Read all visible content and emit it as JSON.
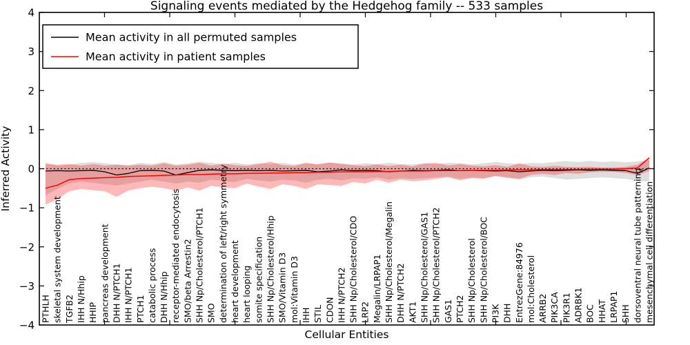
{
  "figure": {
    "title": "Signaling events mediated by the Hedgehog family -- 533 samples",
    "xlabel": "Cellular Entities",
    "ylabel": "Inferred Activity"
  },
  "legend": {
    "position": "upper left",
    "entries": [
      {
        "label": "Mean activity in all permuted samples",
        "color": "#000000"
      },
      {
        "label": "Mean activity in patient samples",
        "color": "#ff0000"
      }
    ]
  },
  "chart_data": {
    "type": "line",
    "title": "Signaling events mediated by the Hedgehog family -- 533 samples",
    "xlabel": "Cellular Entities",
    "ylabel": "Inferred Activity",
    "ylim": [
      -4,
      4
    ],
    "yticks": [
      -4,
      -3,
      -2,
      -1,
      0,
      1,
      2,
      3,
      4
    ],
    "grid": false,
    "zero_reference_line": true,
    "legend_position": "upper left",
    "categories": [
      "PTHLH",
      "skeletal system development",
      "TGFB2",
      "IHH N/Hhip",
      "HHIP",
      "pancreas development",
      "DHH N/PTCH1",
      "IHH N/PTCH1",
      "PTCH1",
      "catabolic process",
      "DHH N/Hhip",
      "receptor-mediated endocytosis",
      "SMO/beta Arrestin2",
      "SHH Np/Cholesterol/PTCH1",
      "SMO",
      "determination of left/right symmetry",
      "heart development",
      "heart looping",
      "somite specification",
      "SHH Np/Cholesterol/Hhip",
      "SMO/Vitamin D3",
      "mol:Vitamin D3",
      "IHH",
      "STIL",
      "CDON",
      "IHH N/PTCH2",
      "SHH Np/Cholesterol/CDO",
      "LRP2",
      "Megalin/LRPAP1",
      "SHH Np/Cholesterol/Megalin",
      "DHH N/PTCH2",
      "AKT1",
      "SHH Np/Cholesterol/GAS1",
      "SHH Np/Cholesterol/PTCH2",
      "GAS1",
      "PTCH2",
      "SHH Np/Cholesterol",
      "SHH Np/Cholesterol/BOC",
      "PI3K",
      "DHH",
      "EntrezGene:84976",
      "mol:Cholesterol",
      "ARRB2",
      "PIK3CA",
      "PIK3R1",
      "ADRBK1",
      "BOC",
      "HHAT",
      "LRPAP1",
      "SHH",
      "dorsoventral neural tube patterning",
      "mesenchymal cell differentiation"
    ],
    "series": [
      {
        "name": "Mean activity in all permuted samples",
        "color": "#000000",
        "style": "solid",
        "values": [
          -0.06,
          -0.05,
          -0.06,
          -0.05,
          -0.04,
          -0.08,
          -0.16,
          -0.12,
          -0.05,
          -0.04,
          -0.06,
          -0.16,
          -0.1,
          -0.04,
          -0.03,
          -0.04,
          -0.05,
          -0.04,
          -0.05,
          -0.04,
          -0.06,
          -0.05,
          -0.04,
          -0.08,
          -0.06,
          -0.03,
          -0.05,
          -0.04,
          -0.05,
          -0.08,
          -0.06,
          -0.04,
          -0.05,
          -0.04,
          -0.03,
          -0.05,
          -0.04,
          -0.05,
          -0.06,
          -0.05,
          -0.08,
          -0.06,
          -0.04,
          -0.05,
          -0.04,
          -0.03,
          -0.04,
          -0.03,
          -0.04,
          -0.05,
          -0.12,
          0.02
        ]
      },
      {
        "name": "Mean activity in patient samples",
        "color": "#ff0000",
        "style": "solid",
        "values": [
          -0.5,
          -0.42,
          -0.28,
          -0.25,
          -0.24,
          -0.23,
          -0.22,
          -0.2,
          -0.19,
          -0.18,
          -0.17,
          -0.16,
          -0.15,
          -0.15,
          -0.14,
          -0.13,
          -0.13,
          -0.12,
          -0.12,
          -0.11,
          -0.11,
          -0.1,
          -0.1,
          -0.09,
          -0.09,
          -0.08,
          -0.08,
          -0.08,
          -0.07,
          -0.07,
          -0.06,
          -0.06,
          -0.06,
          -0.05,
          -0.05,
          -0.05,
          -0.04,
          -0.04,
          -0.04,
          -0.03,
          -0.03,
          -0.03,
          -0.02,
          -0.02,
          -0.02,
          -0.02,
          -0.01,
          -0.01,
          -0.01,
          0.0,
          0.02,
          0.28
        ]
      }
    ],
    "bands": [
      {
        "name": "permuted samples activity range",
        "color": "rgba(0,0,0,0.13)",
        "upper": [
          0.16,
          0.08,
          0.1,
          0.15,
          0.17,
          0.14,
          0.11,
          0.09,
          0.15,
          0.12,
          0.17,
          0.11,
          0.14,
          0.18,
          0.15,
          0.12,
          0.15,
          0.11,
          0.14,
          0.12,
          0.15,
          0.11,
          0.14,
          0.12,
          0.15,
          0.14,
          0.11,
          0.14,
          0.12,
          0.15,
          0.12,
          0.11,
          0.14,
          0.12,
          0.15,
          0.14,
          0.11,
          0.14,
          0.17,
          0.14,
          0.12,
          0.15,
          0.14,
          0.17,
          0.2,
          0.17,
          0.2,
          0.17,
          0.19,
          0.16,
          0.19,
          0.22
        ],
        "lower": [
          -0.68,
          -0.52,
          -0.38,
          -0.33,
          -0.36,
          -0.4,
          -0.43,
          -0.38,
          -0.33,
          -0.28,
          -0.33,
          -0.38,
          -0.33,
          -0.36,
          -0.28,
          -0.32,
          -0.34,
          -0.26,
          -0.3,
          -0.33,
          -0.28,
          -0.3,
          -0.36,
          -0.28,
          -0.26,
          -0.3,
          -0.24,
          -0.26,
          -0.22,
          -0.28,
          -0.24,
          -0.26,
          -0.24,
          -0.22,
          -0.2,
          -0.26,
          -0.22,
          -0.24,
          -0.2,
          -0.24,
          -0.28,
          -0.22,
          -0.2,
          -0.24,
          -0.28,
          -0.26,
          -0.24,
          -0.22,
          -0.24,
          -0.26,
          -0.31,
          -0.33
        ]
      },
      {
        "name": "patient samples activity range",
        "color": "rgba(255,0,0,0.28)",
        "upper": [
          0.12,
          0.1,
          0.12,
          0.08,
          0.12,
          0.08,
          0.1,
          0.08,
          0.1,
          0.08,
          0.14,
          0.08,
          0.1,
          0.15,
          0.08,
          0.13,
          0.09,
          0.07,
          0.12,
          0.18,
          0.09,
          0.07,
          0.15,
          0.11,
          0.16,
          0.12,
          0.09,
          0.07,
          0.11,
          0.07,
          0.1,
          0.06,
          0.13,
          0.15,
          0.08,
          0.12,
          0.08,
          0.06,
          0.09,
          0.05,
          0.14,
          0.06,
          0.05,
          0.07,
          0.05,
          0.04,
          0.05,
          0.03,
          0.03,
          0.05,
          0.1,
          0.28
        ],
        "lower": [
          -0.92,
          -0.78,
          -0.58,
          -0.52,
          -0.55,
          -0.58,
          -0.72,
          -0.56,
          -0.5,
          -0.46,
          -0.5,
          -0.56,
          -0.48,
          -0.56,
          -0.44,
          -0.48,
          -0.5,
          -0.38,
          -0.46,
          -0.52,
          -0.4,
          -0.44,
          -0.52,
          -0.4,
          -0.42,
          -0.44,
          -0.34,
          -0.38,
          -0.28,
          -0.36,
          -0.28,
          -0.32,
          -0.3,
          -0.26,
          -0.22,
          -0.3,
          -0.24,
          -0.26,
          -0.18,
          -0.22,
          -0.26,
          -0.16,
          -0.13,
          -0.16,
          -0.11,
          -0.13,
          -0.09,
          -0.08,
          -0.08,
          -0.11,
          -0.16,
          -0.06
        ]
      }
    ]
  }
}
